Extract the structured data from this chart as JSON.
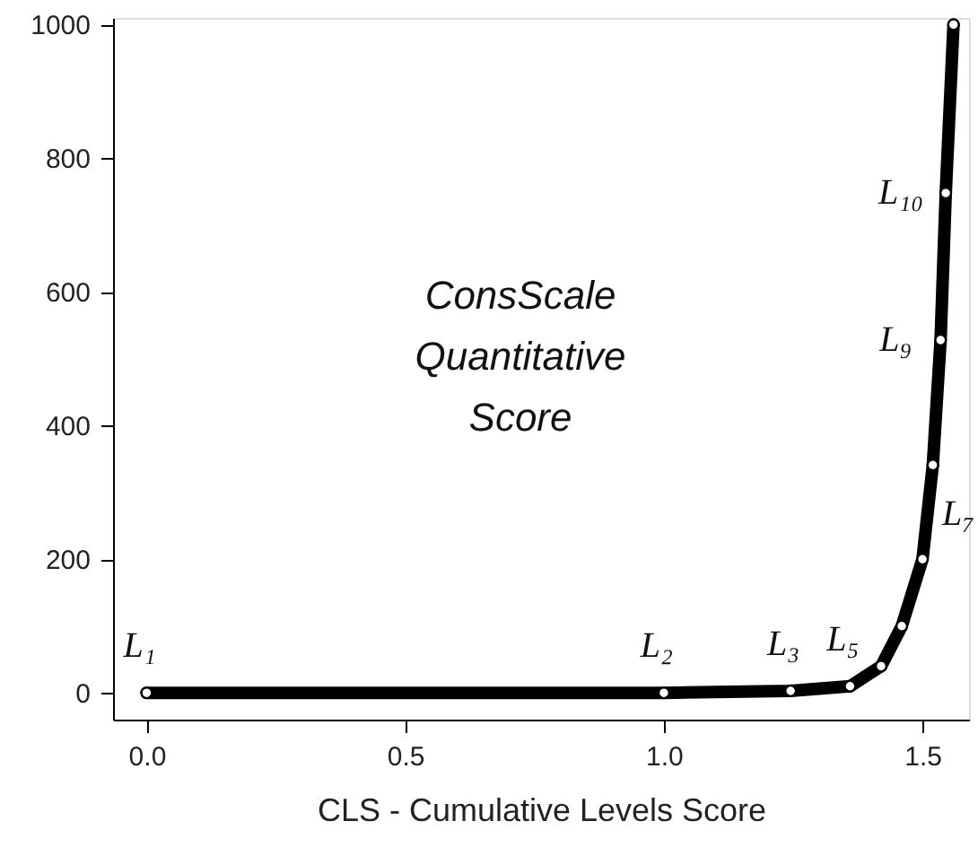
{
  "chart_data": {
    "type": "line",
    "xlabel": "CLS - Cumulative Levels Score",
    "x": [
      0.0,
      1.0,
      1.245,
      1.36,
      1.42,
      1.46,
      1.5,
      1.52,
      1.535,
      1.545,
      1.56
    ],
    "series": [
      {
        "color": "#000000",
        "values": [
          0,
          0,
          3,
          10,
          40,
          100,
          200,
          341,
          528,
          748,
          1000
        ]
      }
    ],
    "marker": "circle",
    "line_style": "solid",
    "grid": false,
    "xlim": [
      -0.065,
      1.59
    ],
    "ylim": [
      -40,
      1010
    ],
    "xticks": [
      {
        "value": 0,
        "label": "0.0"
      },
      0.5,
      {
        "value": 1,
        "label": "1.0"
      },
      1.5
    ],
    "yticks": [
      0,
      200,
      400,
      600,
      800,
      1000
    ],
    "annotations": [
      "ConsScale\nQuantitative\nScore",
      {
        "text": "L₁",
        "x": 0.0,
        "y": 0
      },
      {
        "text": "L₂",
        "x": 1.0,
        "y": 0
      },
      {
        "text": "L₃",
        "x": 1.245,
        "y": 3
      },
      {
        "text": "L₅",
        "x": 1.36,
        "y": 10
      },
      {
        "text": "L₇",
        "x": 1.5,
        "y": 200
      },
      {
        "text": "L₉",
        "x": 1.535,
        "y": 528
      },
      {
        "text": "L₁₀",
        "x": 1.545,
        "y": 748
      }
    ]
  }
}
